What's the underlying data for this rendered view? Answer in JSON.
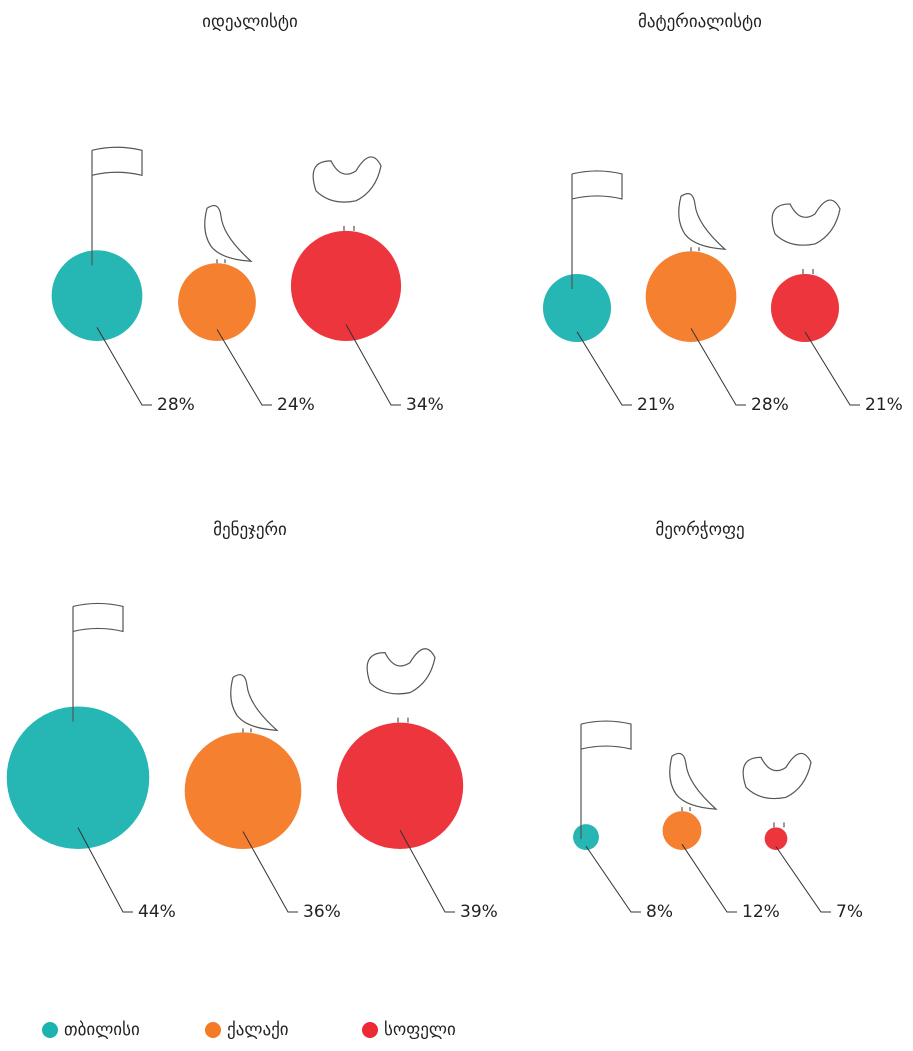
{
  "legend": {
    "series": [
      {
        "name": "თბილისი",
        "color": "#1ab3b0"
      },
      {
        "name": "ქალაქი",
        "color": "#f47a25"
      },
      {
        "name": "სოფელი",
        "color": "#ec2a33"
      }
    ]
  },
  "chart_data": [
    {
      "type": "bubble",
      "title": "იდეალისტი",
      "values": [
        28,
        24,
        34
      ],
      "value_labels": [
        "28%",
        "24%",
        "34%"
      ]
    },
    {
      "type": "bubble",
      "title": "მატერიალისტი",
      "values": [
        21,
        28,
        21
      ],
      "value_labels": [
        "21%",
        "28%",
        "21%"
      ]
    },
    {
      "type": "bubble",
      "title": "მენეჯერი",
      "values": [
        44,
        36,
        39
      ],
      "value_labels": [
        "44%",
        "36%",
        "39%"
      ]
    },
    {
      "type": "bubble",
      "title": "მეორჭოფე",
      "values": [
        8,
        12,
        7
      ],
      "value_labels": [
        "8%",
        "12%",
        "7%"
      ]
    }
  ]
}
